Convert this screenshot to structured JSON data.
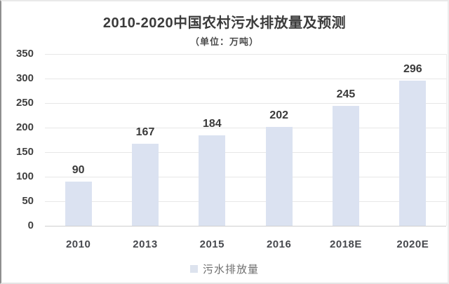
{
  "chart_data": {
    "type": "bar",
    "title": "2010-2020中国农村污水排放量及预测",
    "subtitle": "（单位：万吨）",
    "categories": [
      "2010",
      "2013",
      "2015",
      "2016",
      "2018E",
      "2020E"
    ],
    "values": [
      90,
      167,
      184,
      202,
      245,
      296
    ],
    "series_name": "污水排放量",
    "xlabel": "",
    "ylabel": "",
    "ylim": [
      0,
      350
    ],
    "ytick_step": 50,
    "yticks": [
      350,
      300,
      250,
      200,
      150,
      100,
      50,
      0
    ],
    "grid": true,
    "legend_position": "bottom",
    "colors": {
      "bar_fill": "#dbe2f1",
      "legend_swatch": "#dde3ee",
      "gridline": "#e7e7e7",
      "baseline": "#cfcfcf",
      "title_text": "#3b3b3b",
      "label_text": "#3a3a3a",
      "axis_text": "#47494e",
      "legend_text": "#6e6e6e"
    }
  }
}
